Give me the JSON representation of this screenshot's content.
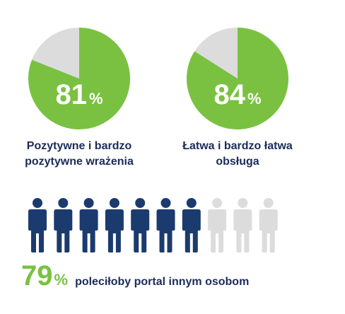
{
  "colors": {
    "green": "#7ac142",
    "grey": "#dcdcdc",
    "navy": "#1b3b6e",
    "text": "#1b2c5a"
  },
  "chart_data": [
    {
      "type": "pie",
      "values": [
        81,
        19
      ],
      "value_label": "81",
      "percent_sign": "%",
      "caption_lines": [
        "Pozytywne i bardzo",
        "pozytywne wrażenia"
      ]
    },
    {
      "type": "pie",
      "values": [
        84,
        16
      ],
      "value_label": "84",
      "percent_sign": "%",
      "caption_lines": [
        "Łatwa i bardzo łatwa",
        "obsługa"
      ]
    },
    {
      "type": "pictogram",
      "total": 10,
      "value": 79,
      "value_label": "79",
      "percent_sign": "%",
      "label": "poleciłoby portal innym osobom"
    }
  ]
}
